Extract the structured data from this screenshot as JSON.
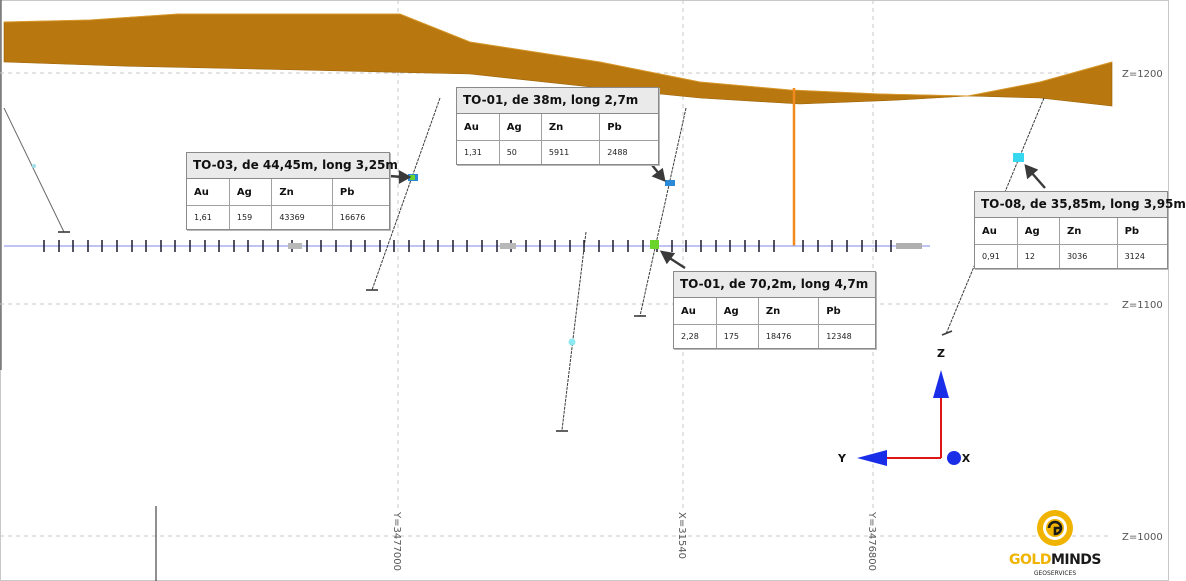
{
  "grid": {
    "levels": [
      "Z=1200",
      "Z=1100",
      "Z=1000"
    ],
    "sections": [
      "Y=3477000",
      "X=31540",
      "Y=3476800"
    ]
  },
  "callouts": [
    {
      "title": "TO-03, de 44,45m, long 3,25m",
      "headers": [
        "Au",
        "Ag",
        "Zn",
        "Pb"
      ],
      "values": [
        "1,61",
        "159",
        "43369",
        "16676"
      ]
    },
    {
      "title": "TO-01, de 38m, long 2,7m",
      "headers": [
        "Au",
        "Ag",
        "Zn",
        "Pb"
      ],
      "values": [
        "1,31",
        "50",
        "5911",
        "2488"
      ]
    },
    {
      "title": "TO-01, de 70,2m, long 4,7m",
      "headers": [
        "Au",
        "Ag",
        "Zn",
        "Pb"
      ],
      "values": [
        "2,28",
        "175",
        "18476",
        "12348"
      ]
    },
    {
      "title": "TO-08, de 35,85m, long 3,95m",
      "headers": [
        "Au",
        "Ag",
        "Zn",
        "Pb"
      ],
      "values": [
        "0,91",
        "12",
        "3036",
        "3124"
      ]
    }
  ],
  "axes": {
    "z": "Z",
    "y": "Y",
    "x": "X"
  },
  "logo": {
    "word_a": "GOLD",
    "word_b": "MINDS",
    "sub": "GEOSERVICES"
  },
  "colors": {
    "overburden": "#b8770f",
    "pit_line": "#f08a1c",
    "section_line": "#9aa0ee",
    "highlight_cyan": "#35d8ee",
    "highlight_blue": "#2a8ad8",
    "highlight_green": "#6ad42a",
    "axis_blue": "#1a2ee8",
    "axis_red": "#e01616",
    "logo_gold": "#f0b400"
  }
}
